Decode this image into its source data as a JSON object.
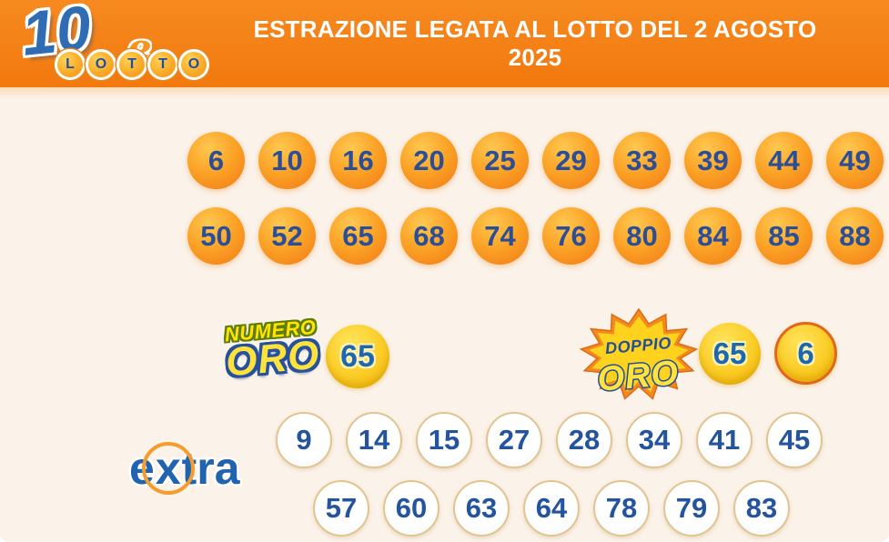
{
  "header": {
    "logo": {
      "number": "10",
      "connector": "e",
      "lotto_letters": [
        "L",
        "O",
        "T",
        "T",
        "O"
      ]
    },
    "title": "ESTRAZIONE LEGATA AL LOTTO DEL 2 AGOSTO 2025"
  },
  "draw": {
    "row1": [
      "6",
      "10",
      "16",
      "20",
      "25",
      "29",
      "33",
      "39",
      "44",
      "49"
    ],
    "row2": [
      "50",
      "52",
      "65",
      "68",
      "74",
      "76",
      "80",
      "84",
      "85",
      "88"
    ]
  },
  "numero_oro": {
    "label_line1": "NUMERO",
    "label_line2": "ORO",
    "number": "65"
  },
  "doppio_oro": {
    "label_line1": "DOPPIO",
    "label_line2": "ORO",
    "first_number": "65",
    "second_number": "6"
  },
  "extra": {
    "label_parts": [
      "e",
      "x",
      "tra"
    ],
    "row1": [
      "9",
      "14",
      "15",
      "27",
      "28",
      "34",
      "41",
      "45"
    ],
    "row2": [
      "57",
      "60",
      "63",
      "64",
      "78",
      "79",
      "83"
    ]
  },
  "colors": {
    "header_orange": "#F5821F",
    "background_cream": "#FBF2E9",
    "ball_orange": "#F58A1C",
    "ball_number_navy": "#2B4E96",
    "gold_ball_yellow": "#FBCC26",
    "gold_number_blue": "#1C67B2",
    "doppio_ring_orange": "#E2661C",
    "extra_ball_border_tan": "#E2C48E",
    "extra_number_navy": "#24549E",
    "title_white": "#FFFFFF",
    "extra_logo_blue": "#2163AE",
    "oro_text_yellow": "#FFE23C"
  }
}
